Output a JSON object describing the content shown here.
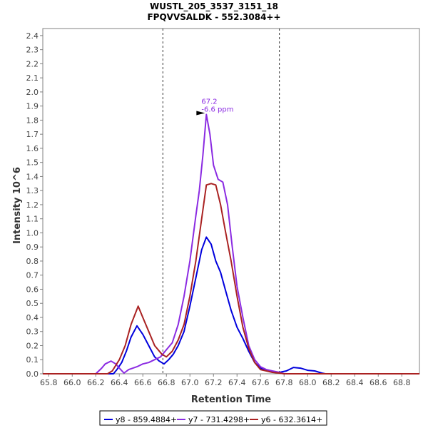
{
  "chart_data": {
    "type": "line",
    "title": "WUSTL_205_3537_3151_18",
    "subtitle": "FPQVVSALDK - 552.3084++",
    "xlabel": "Retention Time",
    "ylabel": "Intensity 10^6",
    "xlim": [
      65.75,
      68.95
    ],
    "ylim": [
      0.0,
      2.45
    ],
    "x_ticks": [
      "65.8",
      "66.0",
      "66.2",
      "66.4",
      "66.6",
      "66.8",
      "67.0",
      "67.2",
      "67.4",
      "67.6",
      "67.8",
      "68.0",
      "68.2",
      "68.4",
      "68.6",
      "68.8"
    ],
    "y_ticks": [
      "0.0",
      "0.1",
      "0.2",
      "0.3",
      "0.4",
      "0.5",
      "0.6",
      "0.7",
      "0.8",
      "0.9",
      "1.0",
      "1.1",
      "1.2",
      "1.3",
      "1.4",
      "1.5",
      "1.6",
      "1.7",
      "1.8",
      "1.9",
      "2.0",
      "2.1",
      "2.2",
      "2.3",
      "2.4"
    ],
    "boundaries": [
      66.77,
      67.76
    ],
    "annotation": {
      "line1": "67.2",
      "line2": "-6.6 ppm",
      "x": 67.14,
      "y": 1.84,
      "color": "#8b2be2"
    },
    "series": [
      {
        "name": "y8 - 859.4884+",
        "color": "#0000dd",
        "points": [
          [
            65.75,
            0.0
          ],
          [
            66.35,
            0.0
          ],
          [
            66.38,
            0.03
          ],
          [
            66.42,
            0.08
          ],
          [
            66.46,
            0.16
          ],
          [
            66.5,
            0.26
          ],
          [
            66.55,
            0.34
          ],
          [
            66.6,
            0.28
          ],
          [
            66.65,
            0.2
          ],
          [
            66.7,
            0.12
          ],
          [
            66.74,
            0.09
          ],
          [
            66.78,
            0.07
          ],
          [
            66.82,
            0.1
          ],
          [
            66.86,
            0.14
          ],
          [
            66.9,
            0.2
          ],
          [
            66.95,
            0.3
          ],
          [
            67.0,
            0.48
          ],
          [
            67.05,
            0.68
          ],
          [
            67.1,
            0.88
          ],
          [
            67.14,
            0.97
          ],
          [
            67.18,
            0.92
          ],
          [
            67.22,
            0.8
          ],
          [
            67.26,
            0.72
          ],
          [
            67.3,
            0.6
          ],
          [
            67.35,
            0.45
          ],
          [
            67.4,
            0.33
          ],
          [
            67.45,
            0.25
          ],
          [
            67.5,
            0.16
          ],
          [
            67.55,
            0.08
          ],
          [
            67.6,
            0.04
          ],
          [
            67.65,
            0.02
          ],
          [
            67.7,
            0.015
          ],
          [
            67.76,
            0.01
          ],
          [
            67.82,
            0.02
          ],
          [
            67.88,
            0.045
          ],
          [
            67.94,
            0.04
          ],
          [
            68.0,
            0.025
          ],
          [
            68.06,
            0.02
          ],
          [
            68.12,
            0.005
          ],
          [
            68.15,
            0.0
          ],
          [
            68.95,
            0.0
          ]
        ]
      },
      {
        "name": "y7 - 731.4298+",
        "color": "#8b2be2",
        "points": [
          [
            65.75,
            0.0
          ],
          [
            66.2,
            0.0
          ],
          [
            66.25,
            0.04
          ],
          [
            66.28,
            0.07
          ],
          [
            66.33,
            0.09
          ],
          [
            66.37,
            0.07
          ],
          [
            66.4,
            0.04
          ],
          [
            66.44,
            0.005
          ],
          [
            66.48,
            0.03
          ],
          [
            66.55,
            0.05
          ],
          [
            66.6,
            0.07
          ],
          [
            66.65,
            0.08
          ],
          [
            66.7,
            0.1
          ],
          [
            66.75,
            0.12
          ],
          [
            66.8,
            0.17
          ],
          [
            66.85,
            0.22
          ],
          [
            66.9,
            0.35
          ],
          [
            66.95,
            0.55
          ],
          [
            67.0,
            0.8
          ],
          [
            67.05,
            1.12
          ],
          [
            67.08,
            1.3
          ],
          [
            67.11,
            1.55
          ],
          [
            67.14,
            1.84
          ],
          [
            67.17,
            1.7
          ],
          [
            67.2,
            1.48
          ],
          [
            67.24,
            1.38
          ],
          [
            67.28,
            1.36
          ],
          [
            67.32,
            1.2
          ],
          [
            67.36,
            0.9
          ],
          [
            67.4,
            0.62
          ],
          [
            67.45,
            0.4
          ],
          [
            67.5,
            0.2
          ],
          [
            67.55,
            0.1
          ],
          [
            67.6,
            0.05
          ],
          [
            67.65,
            0.03
          ],
          [
            67.7,
            0.02
          ],
          [
            67.76,
            0.01
          ],
          [
            67.8,
            0.0
          ],
          [
            68.95,
            0.0
          ]
        ]
      },
      {
        "name": "y6 - 632.3614+",
        "color": "#aa2222",
        "points": [
          [
            65.75,
            0.0
          ],
          [
            66.3,
            0.0
          ],
          [
            66.34,
            0.02
          ],
          [
            66.4,
            0.1
          ],
          [
            66.45,
            0.2
          ],
          [
            66.5,
            0.35
          ],
          [
            66.56,
            0.48
          ],
          [
            66.6,
            0.4
          ],
          [
            66.65,
            0.3
          ],
          [
            66.7,
            0.2
          ],
          [
            66.76,
            0.14
          ],
          [
            66.8,
            0.12
          ],
          [
            66.85,
            0.16
          ],
          [
            66.9,
            0.24
          ],
          [
            66.95,
            0.35
          ],
          [
            67.0,
            0.55
          ],
          [
            67.05,
            0.8
          ],
          [
            67.1,
            1.1
          ],
          [
            67.14,
            1.34
          ],
          [
            67.18,
            1.35
          ],
          [
            67.22,
            1.34
          ],
          [
            67.26,
            1.2
          ],
          [
            67.3,
            1.02
          ],
          [
            67.35,
            0.8
          ],
          [
            67.4,
            0.55
          ],
          [
            67.45,
            0.33
          ],
          [
            67.5,
            0.18
          ],
          [
            67.55,
            0.08
          ],
          [
            67.6,
            0.03
          ],
          [
            67.65,
            0.02
          ],
          [
            67.7,
            0.01
          ],
          [
            67.76,
            0.005
          ],
          [
            67.8,
            0.0
          ],
          [
            68.95,
            0.0
          ]
        ]
      }
    ]
  }
}
